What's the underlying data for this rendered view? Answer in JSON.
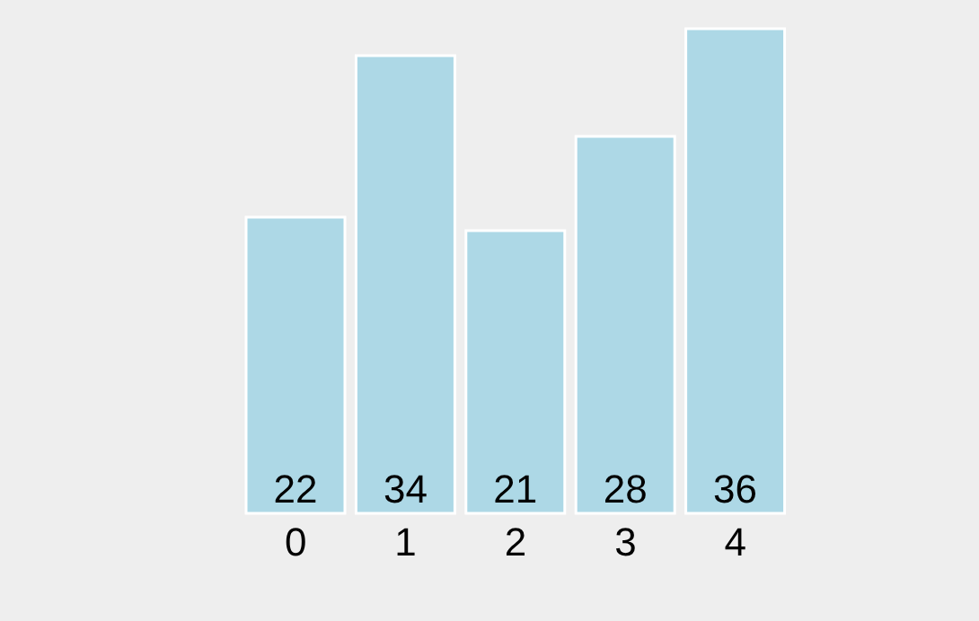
{
  "chart_data": {
    "type": "bar",
    "categories": [
      "0",
      "1",
      "2",
      "3",
      "4"
    ],
    "values": [
      22,
      34,
      21,
      28,
      36
    ],
    "color": "#add8e6",
    "data_labels": true,
    "grid": false,
    "legend": false
  }
}
